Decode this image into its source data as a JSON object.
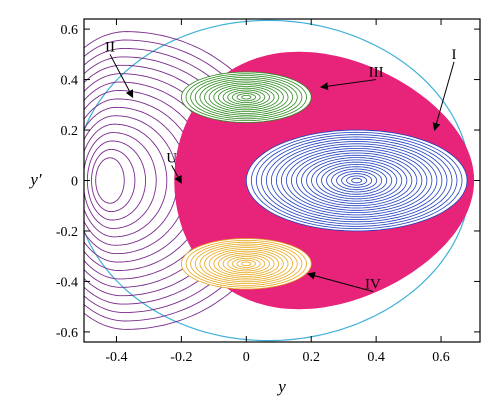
{
  "chart_data": {
    "type": "scatter",
    "title": "",
    "xlabel": "y",
    "ylabel": "y′",
    "xlim": [
      -0.5,
      0.72
    ],
    "ylim": [
      -0.64,
      0.64
    ],
    "xticks": [
      "-0.4",
      "-0.2",
      "0",
      "0.2",
      "0.4",
      "0.6"
    ],
    "xtick_values": [
      -0.4,
      -0.2,
      0,
      0.2,
      0.4,
      0.6
    ],
    "yticks": [
      "0.6",
      "0.4",
      "0.2",
      "0",
      "-0.2",
      "-0.4",
      "-0.6"
    ],
    "ytick_values": [
      0.6,
      0.4,
      0.2,
      0,
      -0.2,
      -0.4,
      -0.6
    ],
    "grid": false,
    "colors": {
      "region_I": "#1f3fbf",
      "region_II": "#7a2a8c",
      "region_III": "#2e8b1f",
      "region_IV": "#e8a81c",
      "chaotic_layer": "#e8247a",
      "boundary": "#3fb0d8"
    },
    "series": [
      {
        "label": "I",
        "center": [
          0.34,
          0.0
        ],
        "radius": [
          0.34,
          0.2
        ]
      },
      {
        "label": "II",
        "center": [
          -0.42,
          0.0
        ],
        "radius": [
          0.09,
          0.6
        ]
      },
      {
        "label": "III",
        "center": [
          0.0,
          0.33
        ],
        "radius": [
          0.2,
          0.1
        ]
      },
      {
        "label": "IV",
        "center": [
          0.0,
          -0.33
        ],
        "radius": [
          0.2,
          0.1
        ]
      }
    ],
    "annotations": [
      {
        "text": "I",
        "point": [
          0.58,
          0.2
        ],
        "label_at": [
          0.64,
          0.47
        ]
      },
      {
        "text": "II",
        "point": [
          -0.35,
          0.33
        ],
        "label_at": [
          -0.42,
          0.5
        ]
      },
      {
        "text": "III",
        "point": [
          0.23,
          0.37
        ],
        "label_at": [
          0.4,
          0.4
        ]
      },
      {
        "text": "IV",
        "point": [
          0.19,
          -0.37
        ],
        "label_at": [
          0.39,
          -0.44
        ]
      },
      {
        "text": "U",
        "point": [
          -0.2,
          -0.01
        ],
        "label_at": [
          -0.23,
          0.06
        ]
      }
    ]
  }
}
